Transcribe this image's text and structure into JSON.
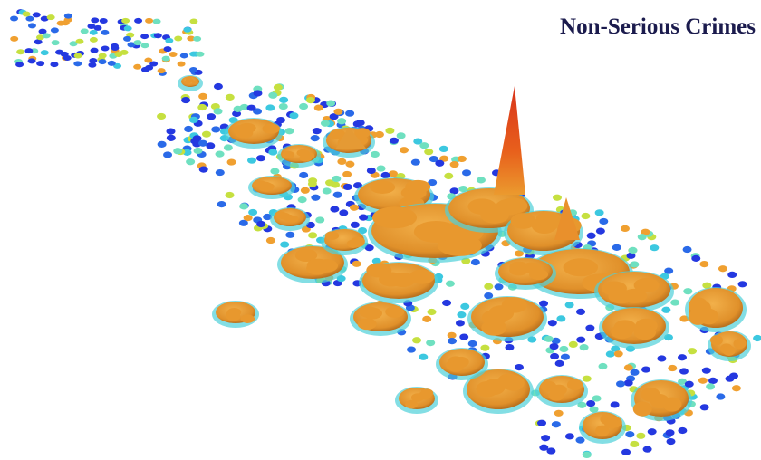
{
  "title": "Non-Serious Crimes"
}
